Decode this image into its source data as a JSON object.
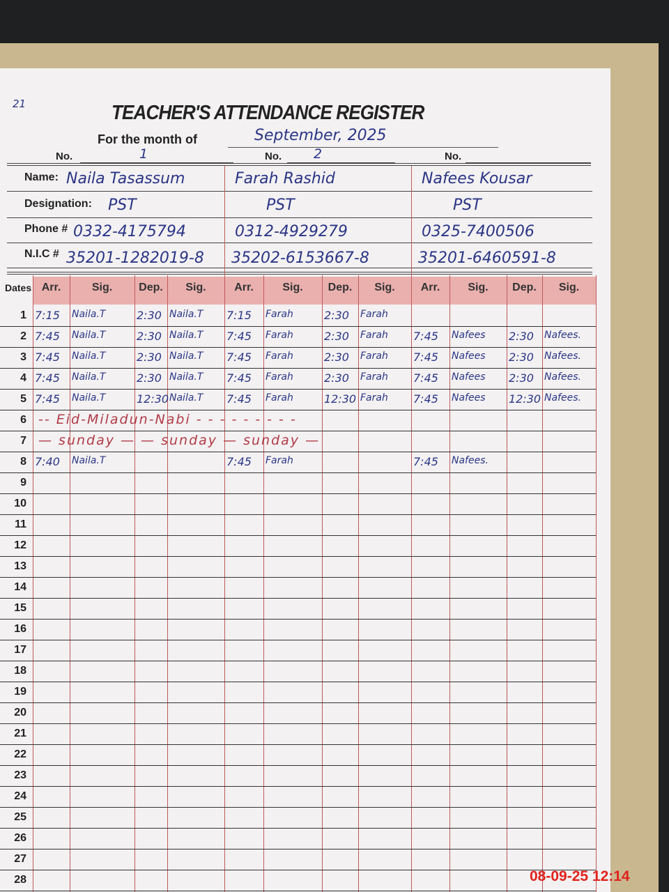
{
  "register": {
    "title": "TEACHER'S ATTENDANCE REGISTER",
    "month_label": "For the month of",
    "month_value": "September, 2025",
    "corner_mark": "21"
  },
  "labels": {
    "no": "No.",
    "name": "Name:",
    "designation": "Designation:",
    "phone": "Phone #",
    "nic": "N.I.C #",
    "dates": "Dates"
  },
  "columns": [
    "Arr.",
    "Sig.",
    "Dep.",
    "Sig."
  ],
  "teachers": [
    {
      "no": "1",
      "name": "Naila Tasassum",
      "designation": "PST",
      "phone": "0332-4175794",
      "nic": "35201-1282019-8"
    },
    {
      "no": "2",
      "name": "Farah Rashid",
      "designation": "PST",
      "phone": "0312-4929279",
      "nic": "35202-6153667-8"
    },
    {
      "no": "",
      "name": "Nafees Kousar",
      "designation": "PST",
      "phone": "0325-7400506",
      "nic": "35201-6460591-8"
    }
  ],
  "rows": [
    {
      "date": "1",
      "cells": [
        "7:15",
        "Naila.T",
        "2:30",
        "Naila.T",
        "7:15",
        "Farah",
        "2:30",
        "Farah",
        "",
        "",
        "",
        ""
      ]
    },
    {
      "date": "2",
      "cells": [
        "7:45",
        "Naila.T",
        "2:30",
        "Naila.T",
        "7:45",
        "Farah",
        "2:30",
        "Farah",
        "7:45",
        "Nafees",
        "2:30",
        "Nafees."
      ]
    },
    {
      "date": "3",
      "cells": [
        "7:45",
        "Naila.T",
        "2:30",
        "Naila.T",
        "7:45",
        "Farah",
        "2:30",
        "Farah",
        "7:45",
        "Nafees",
        "2:30",
        "Nafees."
      ]
    },
    {
      "date": "4",
      "cells": [
        "7:45",
        "Naila.T",
        "2:30",
        "Naila.T",
        "7:45",
        "Farah",
        "2:30",
        "Farah",
        "7:45",
        "Nafees",
        "2:30",
        "Nafees."
      ]
    },
    {
      "date": "5",
      "cells": [
        "7:45",
        "Naila.T",
        "12:30",
        "Naila.T",
        "7:45",
        "Farah",
        "12:30",
        "Farah",
        "7:45",
        "Nafees",
        "12:30",
        "Nafees."
      ]
    },
    {
      "date": "6",
      "note": "-- Eid-Miladun-Nabi -  -  -  -  -  -  -  -  -"
    },
    {
      "date": "7",
      "note": "—   sunday   —   —   sunday   —   sunday   —"
    },
    {
      "date": "8",
      "cells": [
        "7:40",
        "Naila.T",
        "",
        "",
        "7:45",
        "Farah",
        "",
        "",
        "7:45",
        "Nafees.",
        "",
        ""
      ]
    },
    {
      "date": "9"
    },
    {
      "date": "10"
    },
    {
      "date": "11"
    },
    {
      "date": "12"
    },
    {
      "date": "13"
    },
    {
      "date": "14"
    },
    {
      "date": "15"
    },
    {
      "date": "16"
    },
    {
      "date": "17"
    },
    {
      "date": "18"
    },
    {
      "date": "19"
    },
    {
      "date": "20"
    },
    {
      "date": "21"
    },
    {
      "date": "22"
    },
    {
      "date": "23"
    },
    {
      "date": "24"
    },
    {
      "date": "25"
    },
    {
      "date": "26"
    },
    {
      "date": "27"
    },
    {
      "date": "28"
    }
  ],
  "timestamp": "08-09-25  12:14"
}
